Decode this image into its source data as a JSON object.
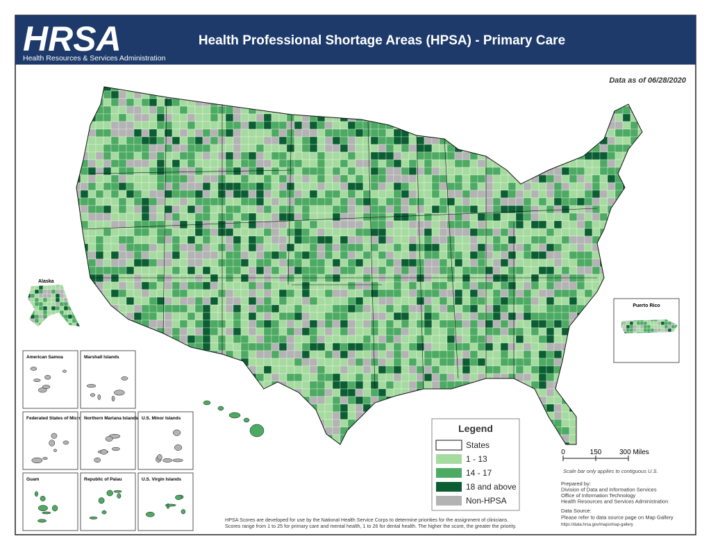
{
  "header": {
    "logo": "HRSA",
    "logo_subtitle": "Health Resources & Services Administration",
    "title": "Health Professional Shortage Areas (HPSA) - Primary Care"
  },
  "data_date": "Data as of 06/28/2020",
  "insets": {
    "alaska": "Alaska",
    "puerto_rico": "Puerto Rico",
    "territories": [
      "American Samoa",
      "Marshall Islands",
      "Federated States of Micronesia",
      "Northern Mariana Islands",
      "U.S. Minor Islands",
      "Guam",
      "Republic of Palau",
      "U.S. Virgin Islands"
    ]
  },
  "legend": {
    "title": "Legend",
    "items": [
      {
        "label": "States",
        "color": "#ffffff"
      },
      {
        "label": "1 - 13",
        "color": "#a6dba0"
      },
      {
        "label": "14 - 17",
        "color": "#4daa63"
      },
      {
        "label": "18 and above",
        "color": "#0b5e31"
      },
      {
        "label": "Non-HPSA",
        "color": "#b3b3b3"
      }
    ]
  },
  "scale_bar": {
    "labels": [
      "0",
      "150",
      "300 Miles"
    ],
    "note": "Scale bar only applies to contiguous U.S."
  },
  "prepared_by": [
    "Prepared by:",
    "Division of Data and Information Services",
    "Office of Information Technology",
    "Health Resources and Services Administration"
  ],
  "data_source": [
    "Data Source:",
    "Please refer to data source page on Map Gallery",
    "https://data.hrsa.gov/maps/map-gallery"
  ],
  "footnote": [
    "HPSA Scores are developed for use by the National Health Service Corps to determine priorities for the assignment of clinicians.",
    "Scores range from 1 to 25 for primary care and mental health, 1 to 26 for dental health. The higher the score, the greater the priority."
  ]
}
